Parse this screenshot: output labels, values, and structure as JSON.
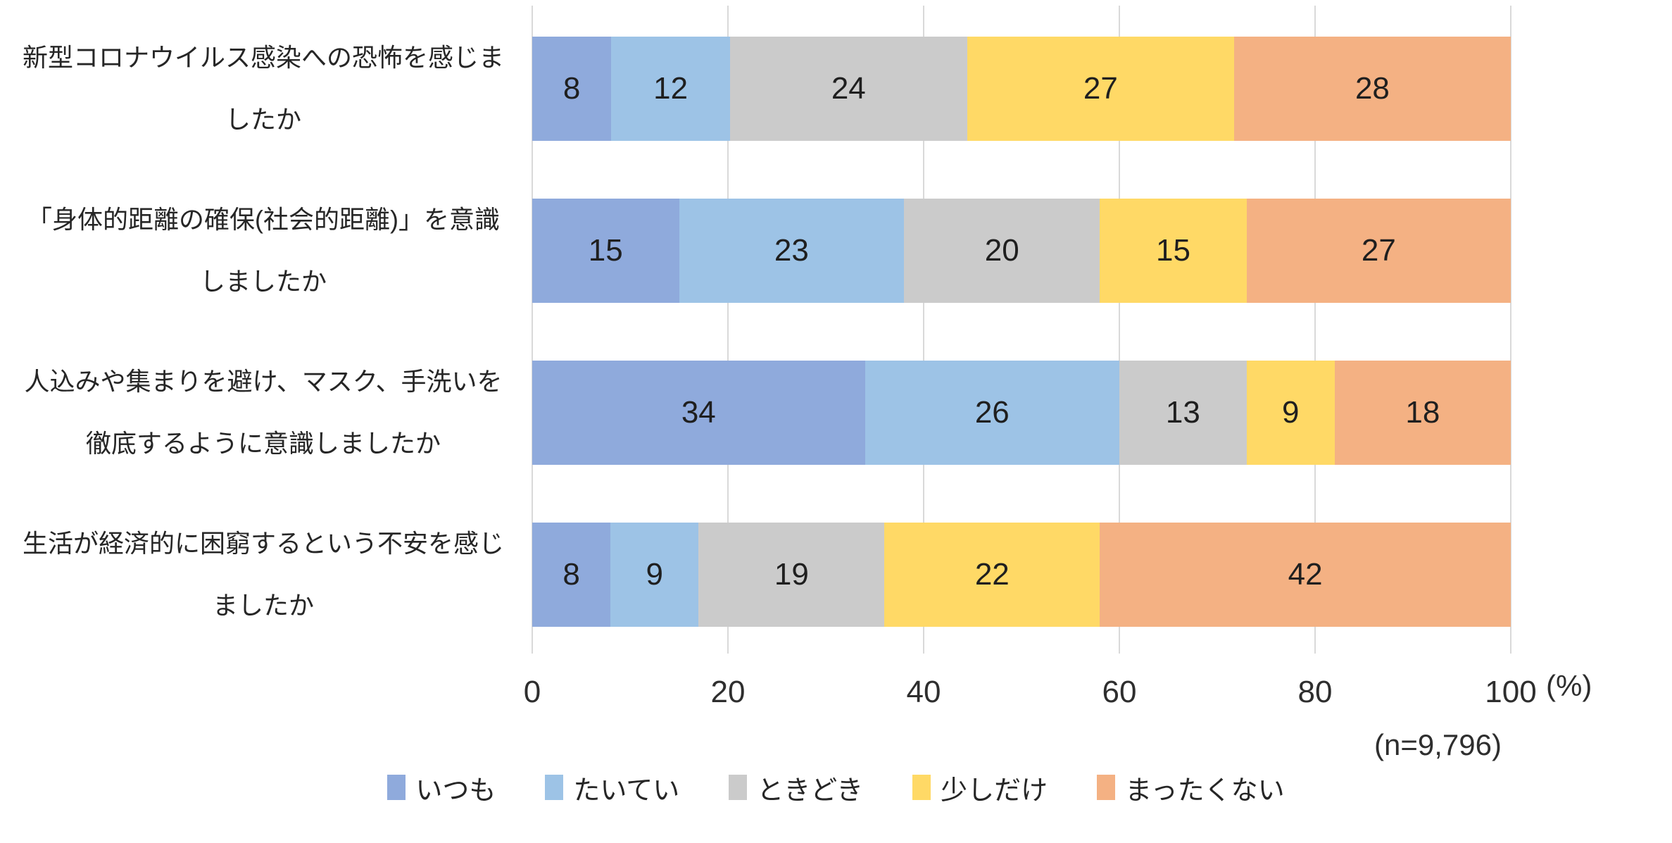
{
  "chart_data": {
    "type": "bar",
    "stacked": true,
    "orientation": "horizontal",
    "categories": [
      {
        "label": "新型コロナウイルス感染への恐怖を感じましたか",
        "lines": [
          "新型コロナウイルス感染への恐怖を感じま",
          "したか"
        ]
      },
      {
        "label": "「身体的距離の確保(社会的距離)」を意識しましたか",
        "lines": [
          "「身体的距離の確保(社会的距離)」を意識",
          "しましたか"
        ]
      },
      {
        "label": "人込みや集まりを避け、マスク、手洗いを徹底するように意識しましたか",
        "lines": [
          "人込みや集まりを避け、マスク、手洗いを",
          "徹底するように意識しましたか"
        ]
      },
      {
        "label": "生活が経済的に困窮するという不安を感じましたか",
        "lines": [
          "生活が経済的に困窮するという不安を感じ",
          "ましたか"
        ]
      }
    ],
    "series": [
      {
        "name": "いつも",
        "color": "#8FAADC",
        "values": [
          8,
          15,
          34,
          8
        ]
      },
      {
        "name": "たいてい",
        "color": "#9DC3E6",
        "values": [
          12,
          23,
          26,
          9
        ]
      },
      {
        "name": "ときどき",
        "color": "#CBCBCB",
        "values": [
          24,
          20,
          13,
          19
        ]
      },
      {
        "name": "少しだけ",
        "color": "#FFD966",
        "values": [
          27,
          15,
          9,
          22
        ]
      },
      {
        "name": "まったくない",
        "color": "#F4B183",
        "values": [
          28,
          27,
          18,
          42
        ]
      }
    ],
    "x_axis": {
      "ticks": [
        0,
        20,
        40,
        60,
        80,
        100
      ],
      "unit_label": "(%)"
    },
    "xlim": [
      0,
      100
    ],
    "grid": true,
    "gridline_color": "#D9D9D9",
    "legend_position": "bottom",
    "sample_label": "(n=9,796)"
  }
}
